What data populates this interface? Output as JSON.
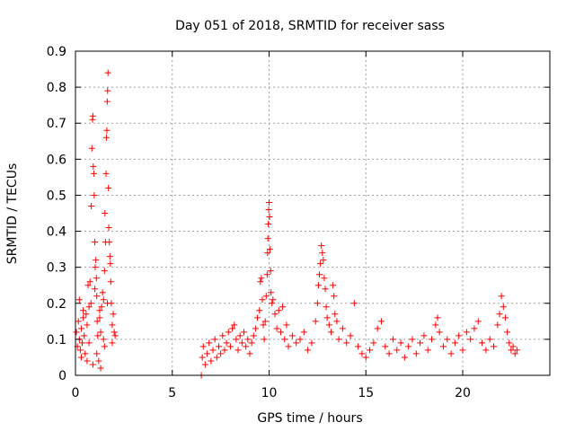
{
  "chart_data": {
    "type": "scatter",
    "title": "Day 051 of 2018, SRMTID for receiver sass",
    "xlabel": "GPS time / hours",
    "ylabel": "SRMTID / TECUs",
    "xlim": [
      0,
      24.5
    ],
    "ylim": [
      0,
      0.9
    ],
    "x_ticks": [
      0,
      5,
      10,
      15,
      20
    ],
    "x_tick_labels": [
      "0",
      "5",
      "10",
      "15",
      "20"
    ],
    "y_ticks": [
      0,
      0.1,
      0.2,
      0.3,
      0.4,
      0.5,
      0.6,
      0.7,
      0.8,
      0.9
    ],
    "y_tick_labels": [
      "0",
      "0.1",
      "0.2",
      "0.3",
      "0.4",
      "0.5",
      "0.6",
      "0.7",
      "0.8",
      "0.9"
    ],
    "grid": true,
    "marker": "+",
    "color": "#ff0000",
    "series": [
      {
        "name": "SRMTID",
        "points": [
          [
            0.05,
            0.12
          ],
          [
            0.1,
            0.08
          ],
          [
            0.15,
            0.15
          ],
          [
            0.2,
            0.1
          ],
          [
            0.25,
            0.07
          ],
          [
            0.3,
            0.13
          ],
          [
            0.35,
            0.09
          ],
          [
            0.4,
            0.18
          ],
          [
            0.45,
            0.11
          ],
          [
            0.5,
            0.06
          ],
          [
            0.55,
            0.17
          ],
          [
            0.6,
            0.14
          ],
          [
            0.65,
            0.25
          ],
          [
            0.7,
            0.09
          ],
          [
            0.75,
            0.26
          ],
          [
            0.8,
            0.2
          ],
          [
            0.82,
            0.47
          ],
          [
            0.85,
            0.63
          ],
          [
            0.88,
            0.71
          ],
          [
            0.9,
            0.72
          ],
          [
            0.92,
            0.58
          ],
          [
            0.95,
            0.56
          ],
          [
            0.97,
            0.5
          ],
          [
            1.0,
            0.37
          ],
          [
            1.02,
            0.3
          ],
          [
            1.05,
            0.32
          ],
          [
            1.08,
            0.27
          ],
          [
            1.1,
            0.22
          ],
          [
            1.12,
            0.15
          ],
          [
            1.15,
            0.11
          ],
          [
            1.2,
            0.04
          ],
          [
            1.25,
            0.16
          ],
          [
            1.3,
            0.12
          ],
          [
            1.35,
            0.19
          ],
          [
            1.4,
            0.23
          ],
          [
            1.45,
            0.1
          ],
          [
            1.5,
            0.29
          ],
          [
            1.52,
            0.45
          ],
          [
            1.55,
            0.37
          ],
          [
            1.58,
            0.56
          ],
          [
            1.6,
            0.66
          ],
          [
            1.62,
            0.68
          ],
          [
            1.64,
            0.76
          ],
          [
            1.66,
            0.79
          ],
          [
            1.68,
            0.84
          ],
          [
            1.7,
            0.52
          ],
          [
            1.72,
            0.41
          ],
          [
            1.75,
            0.37
          ],
          [
            1.78,
            0.33
          ],
          [
            1.8,
            0.31
          ],
          [
            1.82,
            0.26
          ],
          [
            1.85,
            0.2
          ],
          [
            1.9,
            0.14
          ],
          [
            1.95,
            0.17
          ],
          [
            2.0,
            0.12
          ],
          [
            2.05,
            0.11
          ],
          [
            0.3,
            0.05
          ],
          [
            0.6,
            0.04
          ],
          [
            0.9,
            0.03
          ],
          [
            1.1,
            0.06
          ],
          [
            1.3,
            0.02
          ],
          [
            1.5,
            0.08
          ],
          [
            0.2,
            0.21
          ],
          [
            0.4,
            0.16
          ],
          [
            0.7,
            0.19
          ],
          [
            1.0,
            0.24
          ],
          [
            1.25,
            0.18
          ],
          [
            1.45,
            0.21
          ],
          [
            1.65,
            0.2
          ],
          [
            1.9,
            0.09
          ],
          [
            6.5,
            0.0
          ],
          [
            6.55,
            0.05
          ],
          [
            6.6,
            0.08
          ],
          [
            6.7,
            0.03
          ],
          [
            6.8,
            0.06
          ],
          [
            6.9,
            0.09
          ],
          [
            7.0,
            0.04
          ],
          [
            7.1,
            0.07
          ],
          [
            7.2,
            0.1
          ],
          [
            7.3,
            0.05
          ],
          [
            7.4,
            0.08
          ],
          [
            7.5,
            0.06
          ],
          [
            7.6,
            0.11
          ],
          [
            7.7,
            0.07
          ],
          [
            7.8,
            0.09
          ],
          [
            7.9,
            0.12
          ],
          [
            8.0,
            0.08
          ],
          [
            8.1,
            0.13
          ],
          [
            8.2,
            0.14
          ],
          [
            8.3,
            0.1
          ],
          [
            8.4,
            0.07
          ],
          [
            8.5,
            0.11
          ],
          [
            8.6,
            0.09
          ],
          [
            8.7,
            0.12
          ],
          [
            8.8,
            0.08
          ],
          [
            8.9,
            0.1
          ],
          [
            9.0,
            0.06
          ],
          [
            9.1,
            0.09
          ],
          [
            9.2,
            0.11
          ],
          [
            9.3,
            0.13
          ],
          [
            9.4,
            0.16
          ],
          [
            9.5,
            0.18
          ],
          [
            9.55,
            0.26
          ],
          [
            9.6,
            0.27
          ],
          [
            9.65,
            0.21
          ],
          [
            9.7,
            0.14
          ],
          [
            9.75,
            0.1
          ],
          [
            9.8,
            0.15
          ],
          [
            9.85,
            0.22
          ],
          [
            9.9,
            0.28
          ],
          [
            9.92,
            0.34
          ],
          [
            9.94,
            0.38
          ],
          [
            9.96,
            0.42
          ],
          [
            9.98,
            0.46
          ],
          [
            10.0,
            0.48
          ],
          [
            10.02,
            0.44
          ],
          [
            10.05,
            0.35
          ],
          [
            10.08,
            0.29
          ],
          [
            10.1,
            0.23
          ],
          [
            10.15,
            0.2
          ],
          [
            10.2,
            0.21
          ],
          [
            10.3,
            0.17
          ],
          [
            10.4,
            0.13
          ],
          [
            10.5,
            0.18
          ],
          [
            10.6,
            0.12
          ],
          [
            10.7,
            0.19
          ],
          [
            10.8,
            0.1
          ],
          [
            10.9,
            0.14
          ],
          [
            11.0,
            0.08
          ],
          [
            11.2,
            0.11
          ],
          [
            11.4,
            0.09
          ],
          [
            11.6,
            0.1
          ],
          [
            11.8,
            0.12
          ],
          [
            12.0,
            0.07
          ],
          [
            12.2,
            0.09
          ],
          [
            12.4,
            0.15
          ],
          [
            12.5,
            0.2
          ],
          [
            12.55,
            0.25
          ],
          [
            12.6,
            0.28
          ],
          [
            12.65,
            0.31
          ],
          [
            12.7,
            0.36
          ],
          [
            12.75,
            0.34
          ],
          [
            12.8,
            0.32
          ],
          [
            12.85,
            0.27
          ],
          [
            12.9,
            0.24
          ],
          [
            12.95,
            0.19
          ],
          [
            13.0,
            0.16
          ],
          [
            13.1,
            0.14
          ],
          [
            13.2,
            0.12
          ],
          [
            13.3,
            0.25
          ],
          [
            13.35,
            0.22
          ],
          [
            13.4,
            0.17
          ],
          [
            13.5,
            0.15
          ],
          [
            13.6,
            0.1
          ],
          [
            13.8,
            0.13
          ],
          [
            14.0,
            0.09
          ],
          [
            14.2,
            0.11
          ],
          [
            14.4,
            0.2
          ],
          [
            14.6,
            0.08
          ],
          [
            14.8,
            0.06
          ],
          [
            15.0,
            0.05
          ],
          [
            15.2,
            0.07
          ],
          [
            15.4,
            0.09
          ],
          [
            15.6,
            0.13
          ],
          [
            15.8,
            0.15
          ],
          [
            16.0,
            0.08
          ],
          [
            16.2,
            0.06
          ],
          [
            16.4,
            0.1
          ],
          [
            16.6,
            0.07
          ],
          [
            16.8,
            0.09
          ],
          [
            17.0,
            0.05
          ],
          [
            17.2,
            0.08
          ],
          [
            17.4,
            0.1
          ],
          [
            17.6,
            0.06
          ],
          [
            17.8,
            0.09
          ],
          [
            18.0,
            0.11
          ],
          [
            18.2,
            0.07
          ],
          [
            18.4,
            0.1
          ],
          [
            18.6,
            0.14
          ],
          [
            18.7,
            0.16
          ],
          [
            18.8,
            0.12
          ],
          [
            19.0,
            0.08
          ],
          [
            19.2,
            0.1
          ],
          [
            19.4,
            0.06
          ],
          [
            19.6,
            0.09
          ],
          [
            19.8,
            0.11
          ],
          [
            20.0,
            0.07
          ],
          [
            20.2,
            0.12
          ],
          [
            20.4,
            0.1
          ],
          [
            20.6,
            0.13
          ],
          [
            20.8,
            0.15
          ],
          [
            21.0,
            0.09
          ],
          [
            21.2,
            0.07
          ],
          [
            21.4,
            0.1
          ],
          [
            21.6,
            0.08
          ],
          [
            21.8,
            0.14
          ],
          [
            21.9,
            0.17
          ],
          [
            22.0,
            0.22
          ],
          [
            22.1,
            0.19
          ],
          [
            22.2,
            0.16
          ],
          [
            22.3,
            0.12
          ],
          [
            22.4,
            0.09
          ],
          [
            22.5,
            0.07
          ],
          [
            22.6,
            0.08
          ],
          [
            22.7,
            0.06
          ],
          [
            22.8,
            0.07
          ]
        ]
      }
    ]
  }
}
